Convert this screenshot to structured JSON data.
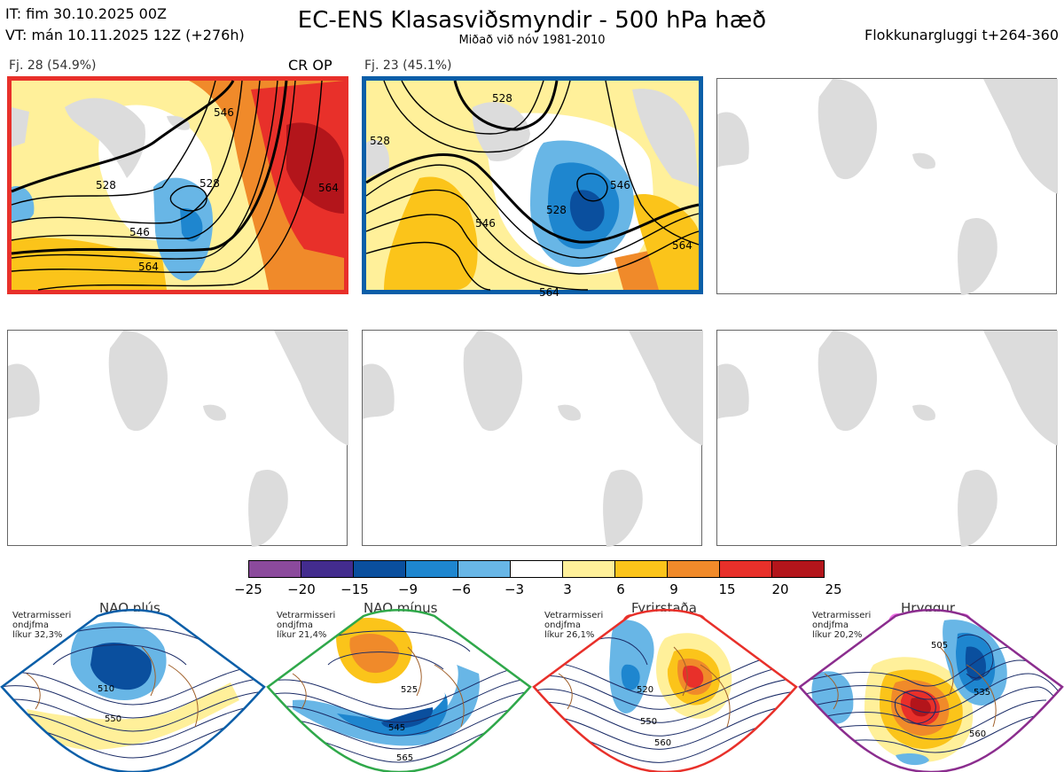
{
  "header": {
    "it_line": "IT: fim 30.10.2025 00Z",
    "vt_line": "VT: mán 10.11.2025 12Z  (+276h)",
    "title": "EC-ENS Klasasviðsmyndir - 500 hPa hæð",
    "subtitle": "Miðað við nóv 1981-2010",
    "window": "Flokkunargluggi t+264-360"
  },
  "panels": [
    {
      "label": "Fj. 28 (54.9%)",
      "tag": "CR OP",
      "border_color": "#e8302a",
      "contour_labels": [
        "528",
        "546",
        "564",
        "546",
        "528",
        "564"
      ]
    },
    {
      "label": "Fj. 23 (45.1%)",
      "border_color": "#0a5ea8",
      "contour_labels": [
        "528",
        "528",
        "546",
        "528",
        "546",
        "564",
        "564"
      ]
    }
  ],
  "colorbar": {
    "colors": [
      "#8b4a9c",
      "#432c8e",
      "#0a4f9e",
      "#1e86cf",
      "#68b6e6",
      "#ffffff",
      "#fff09a",
      "#fbc41a",
      "#f08a2a",
      "#e8302a",
      "#b3151b"
    ],
    "ticks": [
      "−25",
      "−20",
      "−15",
      "−9",
      "−6",
      "−3",
      "3",
      "6",
      "9",
      "15",
      "20",
      "25"
    ]
  },
  "regimes": [
    {
      "name": "NAO plús",
      "note_lines": [
        "Vetrarmisseri",
        "ondjfma",
        "líkur 32,3%"
      ],
      "color": "#0a5ea8",
      "dot_color": "#0a5ea8",
      "contour_labels": [
        "510",
        "550"
      ]
    },
    {
      "name": "NAO mínus",
      "note_lines": [
        "Vetrarmisseri",
        "ondjfma",
        "líkur 21,4%"
      ],
      "color": "#2fa84a",
      "dot_color": "#2fb34e",
      "contour_labels": [
        "525",
        "545",
        "565"
      ]
    },
    {
      "name": "Fyrirstaða",
      "note_lines": [
        "Vetrarmisseri",
        "ondjfma",
        "líkur 26,1%"
      ],
      "color": "#e8302a",
      "dot_color": "#e8302a",
      "contour_labels": [
        "520",
        "550",
        "560"
      ]
    },
    {
      "name": "Hryggur",
      "note_lines": [
        "Vetrarmisseri",
        "ondjfma",
        "líkur 20,2%"
      ],
      "color": "#8b2d8e",
      "dot_color": "#ee6ee6",
      "contour_labels": [
        "505",
        "535",
        "560"
      ]
    }
  ]
}
